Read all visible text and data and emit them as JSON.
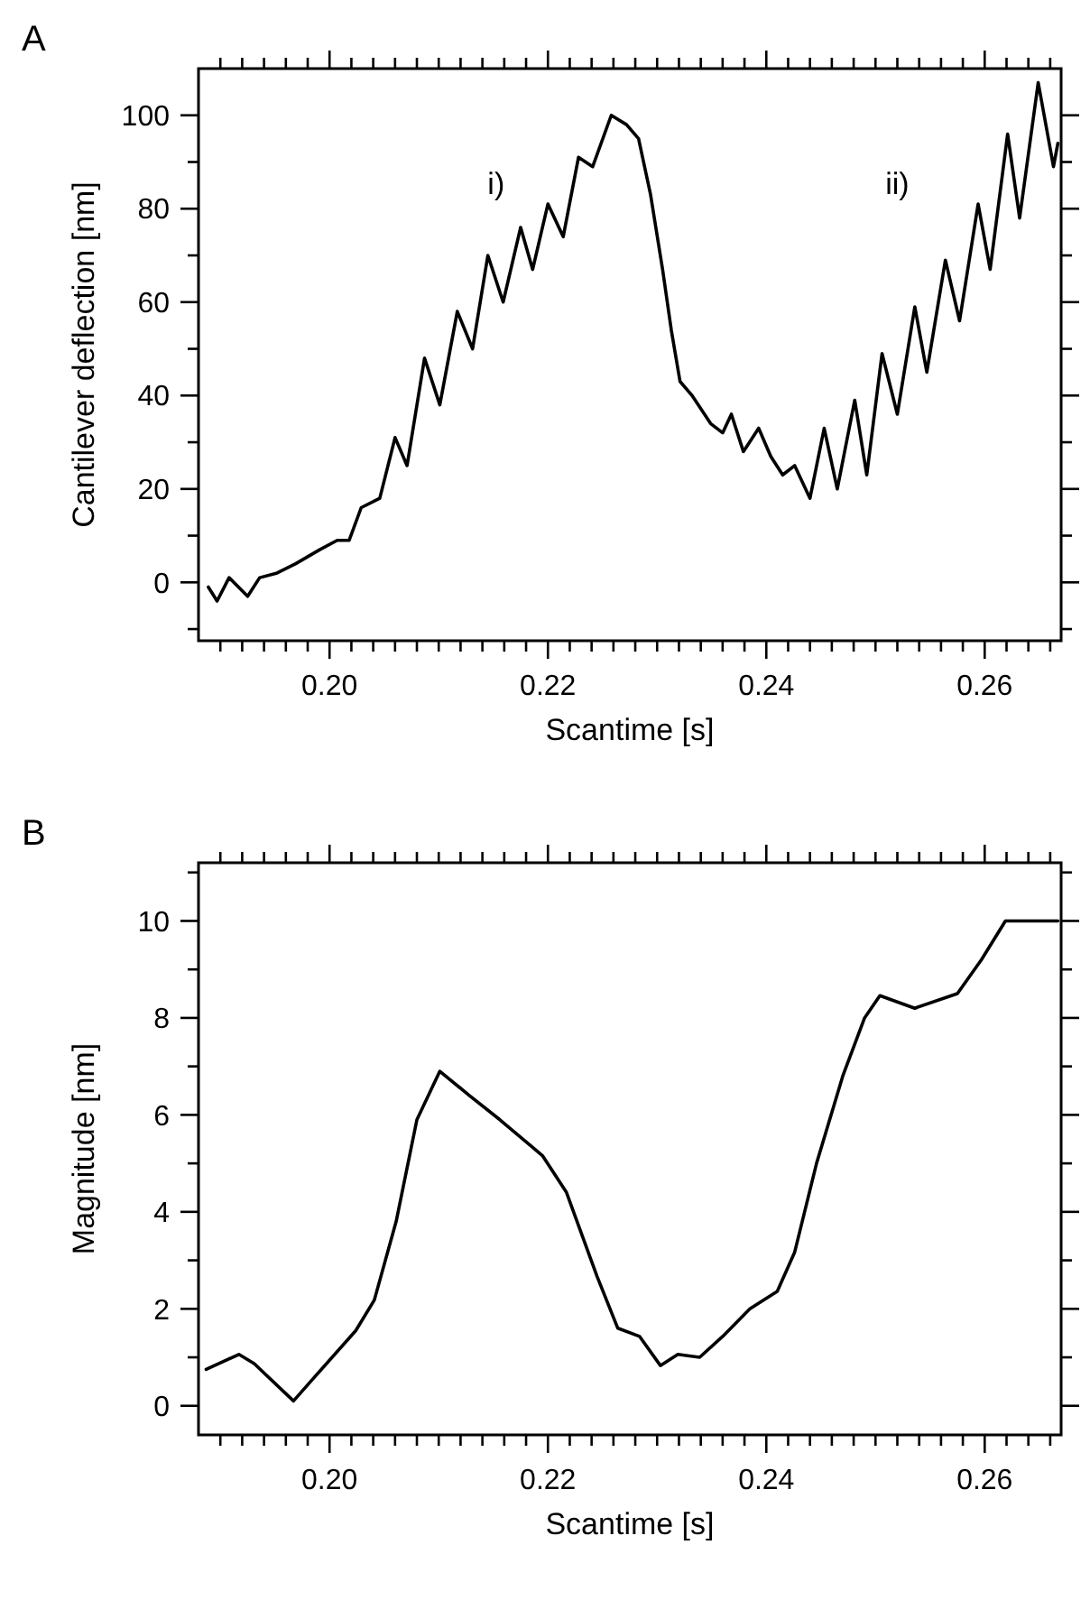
{
  "chart_data": [
    {
      "type": "line",
      "title": "A",
      "xlabel": "Scantime [s]",
      "ylabel": "Cantilever deflection [nm]",
      "xlim": [
        0.188,
        0.267
      ],
      "ylim": [
        -12.5,
        110
      ],
      "xticks": [
        {
          "value": 0.19,
          "label": null
        },
        {
          "value": 0.192,
          "label": null
        },
        {
          "value": 0.194,
          "label": null
        },
        {
          "value": 0.196,
          "label": null
        },
        {
          "value": 0.198,
          "label": null
        },
        {
          "value": 0.2,
          "label": "0.20"
        },
        {
          "value": 0.202,
          "label": null
        },
        {
          "value": 0.204,
          "label": null
        },
        {
          "value": 0.206,
          "label": null
        },
        {
          "value": 0.208,
          "label": null
        },
        {
          "value": 0.21,
          "label": null
        },
        {
          "value": 0.212,
          "label": null
        },
        {
          "value": 0.214,
          "label": null
        },
        {
          "value": 0.216,
          "label": null
        },
        {
          "value": 0.218,
          "label": null
        },
        {
          "value": 0.22,
          "label": "0.22"
        },
        {
          "value": 0.222,
          "label": null
        },
        {
          "value": 0.224,
          "label": null
        },
        {
          "value": 0.226,
          "label": null
        },
        {
          "value": 0.228,
          "label": null
        },
        {
          "value": 0.23,
          "label": null
        },
        {
          "value": 0.232,
          "label": null
        },
        {
          "value": 0.234,
          "label": null
        },
        {
          "value": 0.236,
          "label": null
        },
        {
          "value": 0.238,
          "label": null
        },
        {
          "value": 0.24,
          "label": "0.24"
        },
        {
          "value": 0.242,
          "label": null
        },
        {
          "value": 0.244,
          "label": null
        },
        {
          "value": 0.246,
          "label": null
        },
        {
          "value": 0.248,
          "label": null
        },
        {
          "value": 0.25,
          "label": null
        },
        {
          "value": 0.252,
          "label": null
        },
        {
          "value": 0.254,
          "label": null
        },
        {
          "value": 0.256,
          "label": null
        },
        {
          "value": 0.258,
          "label": null
        },
        {
          "value": 0.26,
          "label": "0.26"
        },
        {
          "value": 0.262,
          "label": null
        },
        {
          "value": 0.264,
          "label": null
        },
        {
          "value": 0.266,
          "label": null
        }
      ],
      "yticks": [
        {
          "value": -10,
          "label": null
        },
        0,
        {
          "value": 10,
          "label": null
        },
        20,
        {
          "value": 30,
          "label": null
        },
        40,
        {
          "value": 50,
          "label": null
        },
        60,
        {
          "value": 70,
          "label": null
        },
        80,
        {
          "value": 90,
          "label": null
        },
        100
      ],
      "annotations": [
        "i)",
        "ii)"
      ],
      "series": [
        {
          "color": "#000000",
          "x": [
            0.1889,
            0.1897,
            0.1908,
            0.1925,
            0.1936,
            0.1952,
            0.1969,
            0.1991,
            0.2007,
            0.2018,
            0.2029,
            0.2046,
            0.206,
            0.2071,
            0.2087,
            0.2101,
            0.2117,
            0.2131,
            0.2145,
            0.2159,
            0.2175,
            0.2186,
            0.22,
            0.2214,
            0.2228,
            0.2241,
            0.2258,
            0.2272,
            0.2283,
            0.2294,
            0.2305,
            0.2313,
            0.2321,
            0.2332,
            0.2349,
            0.236,
            0.2368,
            0.2379,
            0.2393,
            0.2404,
            0.2415,
            0.2426,
            0.244,
            0.2453,
            0.2465,
            0.2481,
            0.2492,
            0.2506,
            0.252,
            0.2536,
            0.2547,
            0.2564,
            0.2577,
            0.2594,
            0.2605,
            0.2621,
            0.2632,
            0.2649,
            0.2663,
            0.2667
          ],
          "values": [
            -1,
            -4,
            1,
            -3,
            1,
            2,
            4,
            7,
            9,
            9,
            16,
            18,
            31,
            25,
            48,
            38,
            58,
            50,
            70,
            60,
            76,
            67,
            81,
            74,
            91,
            89,
            100,
            98,
            95,
            83,
            67,
            54,
            43,
            40,
            34,
            32,
            36,
            28,
            33,
            27,
            23,
            25,
            18,
            33,
            20,
            39,
            23,
            49,
            36,
            59,
            45,
            69,
            56,
            81,
            67,
            96,
            78,
            107,
            89,
            94
          ]
        }
      ]
    },
    {
      "type": "line",
      "title": "B",
      "xlabel": "Scantime [s]",
      "ylabel": "Magnitude [nm]",
      "xlim": [
        0.188,
        0.267
      ],
      "ylim": [
        -0.6,
        11.2
      ],
      "xticks": [
        {
          "value": 0.19,
          "label": null
        },
        {
          "value": 0.192,
          "label": null
        },
        {
          "value": 0.194,
          "label": null
        },
        {
          "value": 0.196,
          "label": null
        },
        {
          "value": 0.198,
          "label": null
        },
        {
          "value": 0.2,
          "label": "0.20"
        },
        {
          "value": 0.202,
          "label": null
        },
        {
          "value": 0.204,
          "label": null
        },
        {
          "value": 0.206,
          "label": null
        },
        {
          "value": 0.208,
          "label": null
        },
        {
          "value": 0.21,
          "label": null
        },
        {
          "value": 0.212,
          "label": null
        },
        {
          "value": 0.214,
          "label": null
        },
        {
          "value": 0.216,
          "label": null
        },
        {
          "value": 0.218,
          "label": null
        },
        {
          "value": 0.22,
          "label": "0.22"
        },
        {
          "value": 0.222,
          "label": null
        },
        {
          "value": 0.224,
          "label": null
        },
        {
          "value": 0.226,
          "label": null
        },
        {
          "value": 0.228,
          "label": null
        },
        {
          "value": 0.23,
          "label": null
        },
        {
          "value": 0.232,
          "label": null
        },
        {
          "value": 0.234,
          "label": null
        },
        {
          "value": 0.236,
          "label": null
        },
        {
          "value": 0.238,
          "label": null
        },
        {
          "value": 0.24,
          "label": "0.24"
        },
        {
          "value": 0.242,
          "label": null
        },
        {
          "value": 0.244,
          "label": null
        },
        {
          "value": 0.246,
          "label": null
        },
        {
          "value": 0.248,
          "label": null
        },
        {
          "value": 0.25,
          "label": null
        },
        {
          "value": 0.252,
          "label": null
        },
        {
          "value": 0.254,
          "label": null
        },
        {
          "value": 0.256,
          "label": null
        },
        {
          "value": 0.258,
          "label": null
        },
        {
          "value": 0.26,
          "label": "0.26"
        },
        {
          "value": 0.262,
          "label": null
        },
        {
          "value": 0.264,
          "label": null
        },
        {
          "value": 0.266,
          "label": null
        }
      ],
      "yticks": [
        0,
        {
          "value": 1,
          "label": null
        },
        2,
        {
          "value": 3,
          "label": null
        },
        4,
        {
          "value": 5,
          "label": null
        },
        6,
        {
          "value": 7,
          "label": null
        },
        8,
        {
          "value": 9,
          "label": null
        },
        10,
        {
          "value": 11,
          "label": null
        }
      ],
      "series": [
        {
          "color": "#000000",
          "x": [
            0.1887,
            0.1917,
            0.1931,
            0.1967,
            0.1985,
            0.2024,
            0.2041,
            0.2061,
            0.208,
            0.2101,
            0.2128,
            0.2156,
            0.2195,
            0.2217,
            0.2245,
            0.2264,
            0.2284,
            0.2303,
            0.2319,
            0.2339,
            0.236,
            0.2385,
            0.241,
            0.2426,
            0.2446,
            0.247,
            0.249,
            0.2504,
            0.2536,
            0.2575,
            0.2597,
            0.2619,
            0.2667
          ],
          "values": [
            0.75,
            1.06,
            0.87,
            0.1,
            0.56,
            1.55,
            2.18,
            3.8,
            5.9,
            6.9,
            6.4,
            5.9,
            5.16,
            4.4,
            2.67,
            1.6,
            1.43,
            0.83,
            1.06,
            1.0,
            1.43,
            2.0,
            2.36,
            3.17,
            5.0,
            6.8,
            8.0,
            8.46,
            8.2,
            8.5,
            9.2,
            10.0,
            10.0
          ]
        }
      ]
    }
  ]
}
